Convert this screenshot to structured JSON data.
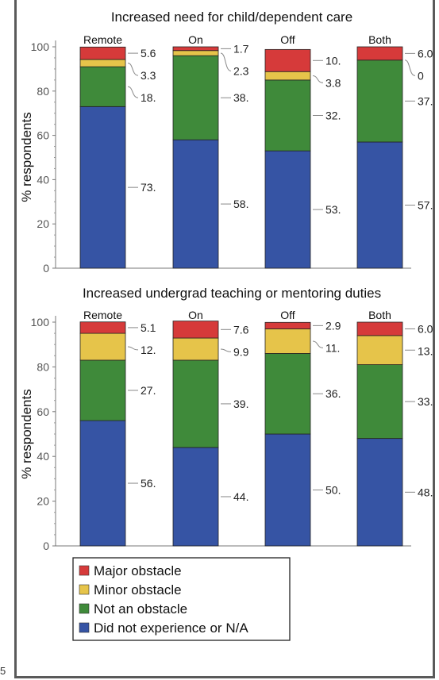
{
  "figure_edge_mark": "5",
  "legend": {
    "items": [
      {
        "label": "Major obstacle",
        "color": "#d63a3a"
      },
      {
        "label": "Minor obstacle",
        "color": "#e6c44a"
      },
      {
        "label": "Not an obstacle",
        "color": "#3f8a3a"
      },
      {
        "label": "Did not experience or N/A",
        "color": "#3654a4"
      }
    ]
  },
  "chart_data": [
    {
      "type": "bar",
      "stacked": true,
      "title": "Increased need for child/dependent care",
      "ylabel": "% respondents",
      "ylim": [
        0,
        100
      ],
      "yticks": [
        "0",
        "20",
        "40",
        "60",
        "80",
        "100"
      ],
      "grid": false,
      "categories": [
        "Remote",
        "On",
        "Off",
        "Both"
      ],
      "series": [
        {
          "name": "Did not experience or N/A",
          "color": "#3654a4",
          "values": [
            73,
            58,
            53,
            57
          ],
          "labels": [
            "73.",
            "58.",
            "53.",
            "57."
          ]
        },
        {
          "name": "Not an obstacle",
          "color": "#3f8a3a",
          "values": [
            18,
            38,
            32,
            37
          ],
          "labels": [
            "18.",
            "38.",
            "32.",
            "37."
          ]
        },
        {
          "name": "Minor obstacle",
          "color": "#e6c44a",
          "values": [
            3.3,
            2.3,
            3.8,
            0
          ],
          "labels": [
            "3.3",
            "2.3",
            "3.8",
            "0"
          ]
        },
        {
          "name": "Major obstacle",
          "color": "#d63a3a",
          "values": [
            5.6,
            1.7,
            10,
            6.0
          ],
          "labels": [
            "5.6",
            "1.7",
            "10.",
            "6.0"
          ]
        }
      ]
    },
    {
      "type": "bar",
      "stacked": true,
      "title": "Increased undergrad teaching or mentoring duties",
      "ylabel": "% respondents",
      "ylim": [
        0,
        100
      ],
      "yticks": [
        "0",
        "20",
        "40",
        "60",
        "80",
        "100"
      ],
      "grid": false,
      "categories": [
        "Remote",
        "On",
        "Off",
        "Both"
      ],
      "series": [
        {
          "name": "Did not experience or N/A",
          "color": "#3654a4",
          "values": [
            56,
            44,
            50,
            48
          ],
          "labels": [
            "56.",
            "44.",
            "50.",
            "48."
          ]
        },
        {
          "name": "Not an obstacle",
          "color": "#3f8a3a",
          "values": [
            27,
            39,
            36,
            33
          ],
          "labels": [
            "27.",
            "39.",
            "36.",
            "33."
          ]
        },
        {
          "name": "Minor obstacle",
          "color": "#e6c44a",
          "values": [
            12,
            9.9,
            11,
            13
          ],
          "labels": [
            "12.",
            "9.9",
            "11.",
            "13."
          ]
        },
        {
          "name": "Major obstacle",
          "color": "#d63a3a",
          "values": [
            5.1,
            7.6,
            2.9,
            6.0
          ],
          "labels": [
            "5.1",
            "7.6",
            "2.9",
            "6.0"
          ]
        }
      ]
    }
  ]
}
